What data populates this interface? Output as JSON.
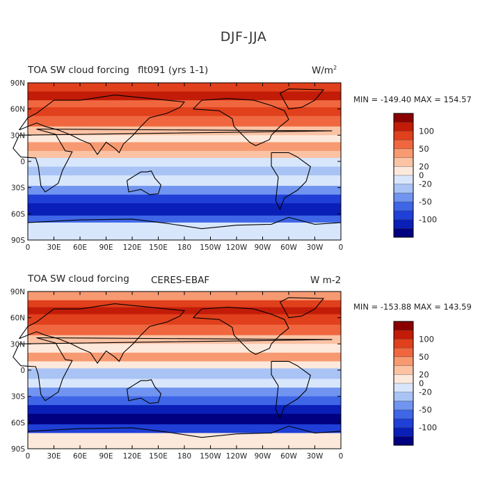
{
  "title": "DJF-JJA",
  "colors": [
    "#000080",
    "#0a1fb8",
    "#1f3fd6",
    "#3e66e6",
    "#7094f0",
    "#a9c3f5",
    "#d8e6fb",
    "#fde9dc",
    "#fbc2a4",
    "#f79a72",
    "#f0673f",
    "#e0401c",
    "#c21c08",
    "#8a0000"
  ],
  "panels": [
    {
      "variable_label": "TOA SW cloud forcing",
      "case_label": "flt091 (yrs 1-1)",
      "units_label": "W/m",
      "units_sup": "2",
      "min_max_text": "MIN = -149.40 MAX = 154.57"
    },
    {
      "variable_label": "TOA SW cloud forcing",
      "case_label": "CERES-EBAF",
      "units_label": "W m-2",
      "units_sup": "",
      "min_max_text": "MIN = -153.88 MAX = 143.59"
    }
  ],
  "colorbar_labels": [
    "100",
    "50",
    "20",
    "0",
    "-20",
    "-50",
    "-100"
  ],
  "lat_ticks": [
    "90N",
    "60N",
    "30N",
    "0",
    "30S",
    "60S",
    "90S"
  ],
  "lon_ticks": [
    "0",
    "30E",
    "60E",
    "90E",
    "120E",
    "150E",
    "180",
    "150W",
    "120W",
    "90W",
    "60W",
    "30W",
    "0"
  ]
}
